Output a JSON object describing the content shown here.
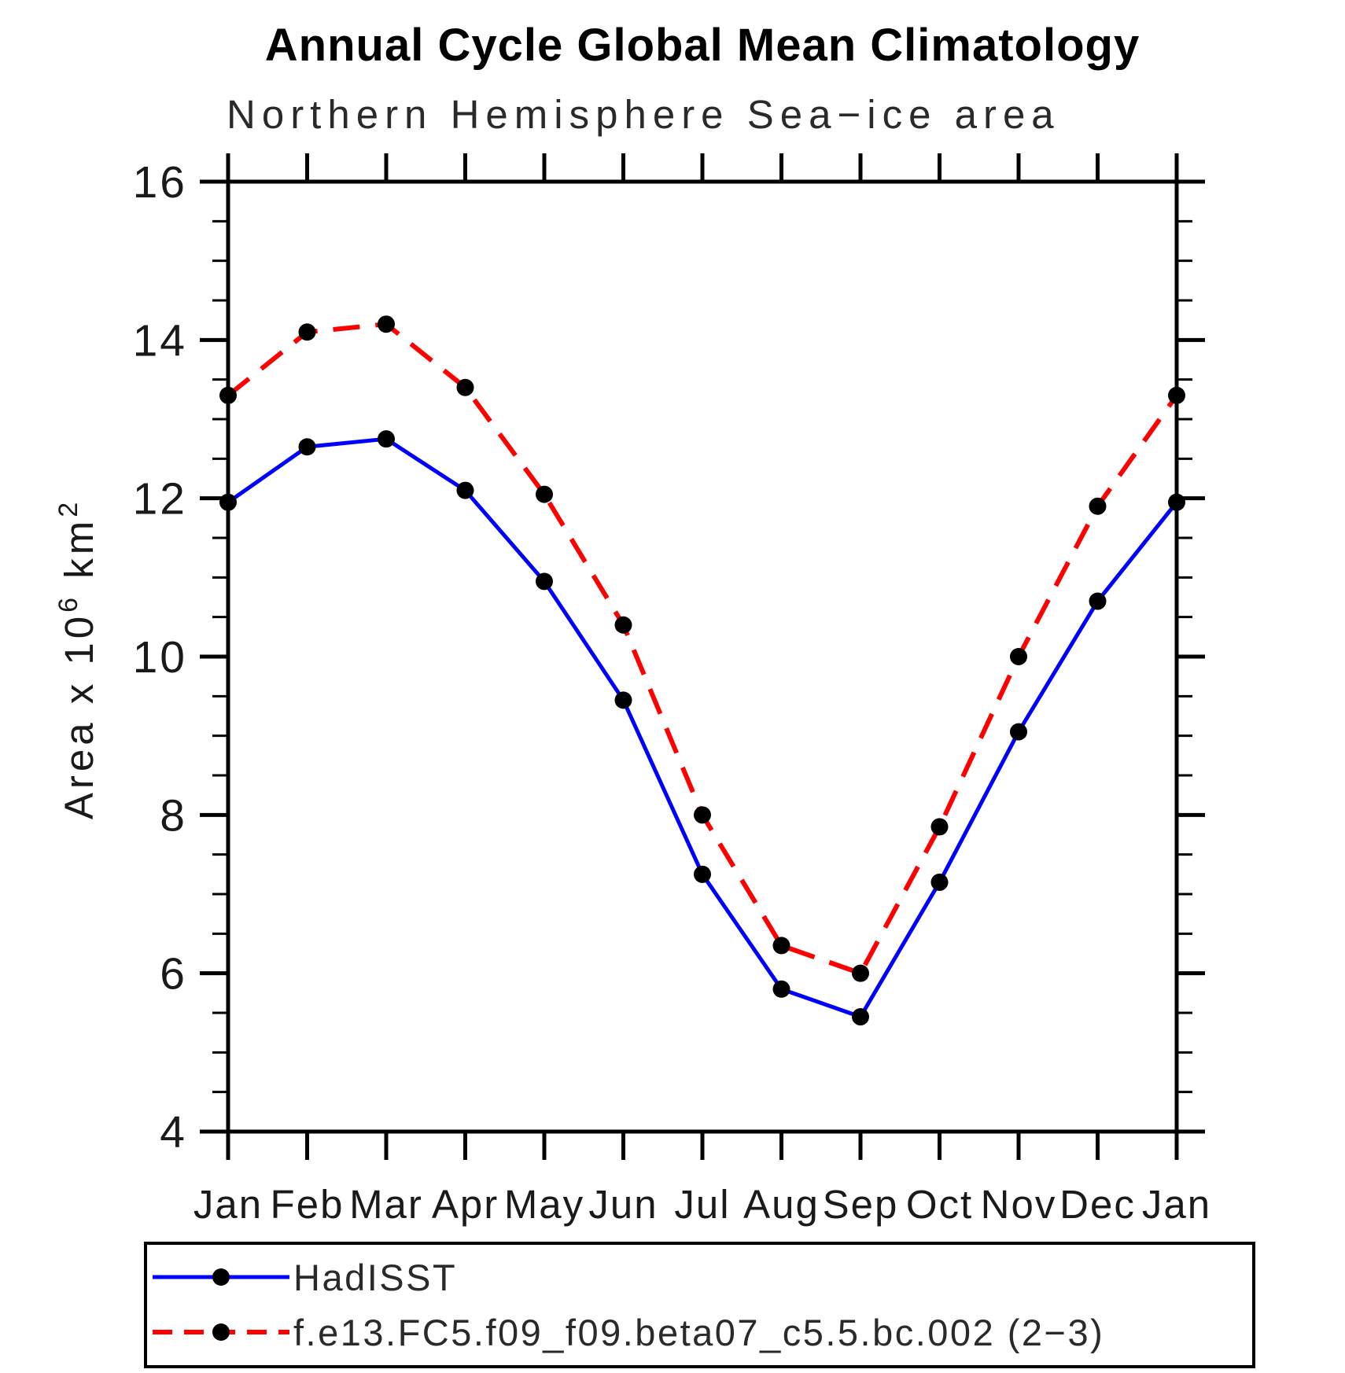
{
  "title": "Annual Cycle Global Mean Climatology",
  "subtitle": "Northern Hemisphere Sea−ice area",
  "y_axis_label": {
    "text": "Area x 10",
    "sup1": "6",
    "text2": " km",
    "sup2": "2"
  },
  "chart_data": {
    "type": "line",
    "categories": [
      "Jan",
      "Feb",
      "Mar",
      "Apr",
      "May",
      "Jun",
      "Jul",
      "Aug",
      "Sep",
      "Oct",
      "Nov",
      "Dec",
      "Jan"
    ],
    "series": [
      {
        "name": "HadISST",
        "color": "#0000ff",
        "line_style": "solid",
        "marker": "filled-circle",
        "values": [
          11.95,
          12.65,
          12.75,
          12.1,
          10.95,
          9.45,
          7.25,
          5.8,
          5.45,
          7.15,
          9.05,
          10.7,
          11.95
        ]
      },
      {
        "name": "f.e13.FC5.f09_f09.beta07_c5.5.bc.002 (2−3)",
        "color": "#ff0000",
        "line_style": "dashed",
        "marker": "filled-circle",
        "values": [
          13.3,
          14.1,
          14.2,
          13.4,
          12.05,
          10.4,
          8.0,
          6.35,
          6.0,
          7.85,
          10.0,
          11.9,
          13.3
        ]
      }
    ],
    "marker_color": "#000000",
    "xlabel": "",
    "ylabel": "Area x 10^6 km^2",
    "yticks": [
      4,
      6,
      8,
      10,
      12,
      14,
      16
    ],
    "ylim": [
      4,
      16
    ],
    "minor_tick_interval": 0.5,
    "grid": false,
    "legend_position": "bottom"
  }
}
